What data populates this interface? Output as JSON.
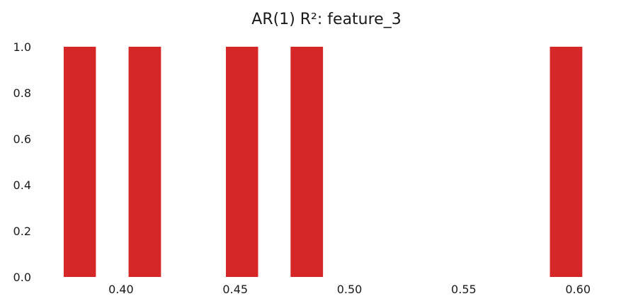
{
  "chart_data": {
    "type": "bar",
    "title": "AR(1) R²: feature_3",
    "xlabel": "",
    "ylabel": "",
    "bar_color": "#d62728",
    "xlim": [
      0.365,
      0.608
    ],
    "ylim": [
      0,
      1.0
    ],
    "bins": [
      {
        "start": 0.3749,
        "end": 0.389,
        "value": 1.0
      },
      {
        "start": 0.4033,
        "end": 0.4175,
        "value": 1.0
      },
      {
        "start": 0.4459,
        "end": 0.46,
        "value": 1.0
      },
      {
        "start": 0.4742,
        "end": 0.4884,
        "value": 1.0
      },
      {
        "start": 0.5877,
        "end": 0.6019,
        "value": 1.0
      }
    ],
    "xticks": [
      0.4,
      0.45,
      0.5,
      0.55,
      0.6
    ],
    "xtick_labels": [
      "0.40",
      "0.45",
      "0.50",
      "0.55",
      "0.60"
    ],
    "yticks": [
      0.0,
      0.2,
      0.4,
      0.6,
      0.8,
      1.0
    ],
    "ytick_labels": [
      "0.0",
      "0.2",
      "0.4",
      "0.6",
      "0.8",
      "1.0"
    ],
    "grid": false,
    "legend": "none"
  }
}
